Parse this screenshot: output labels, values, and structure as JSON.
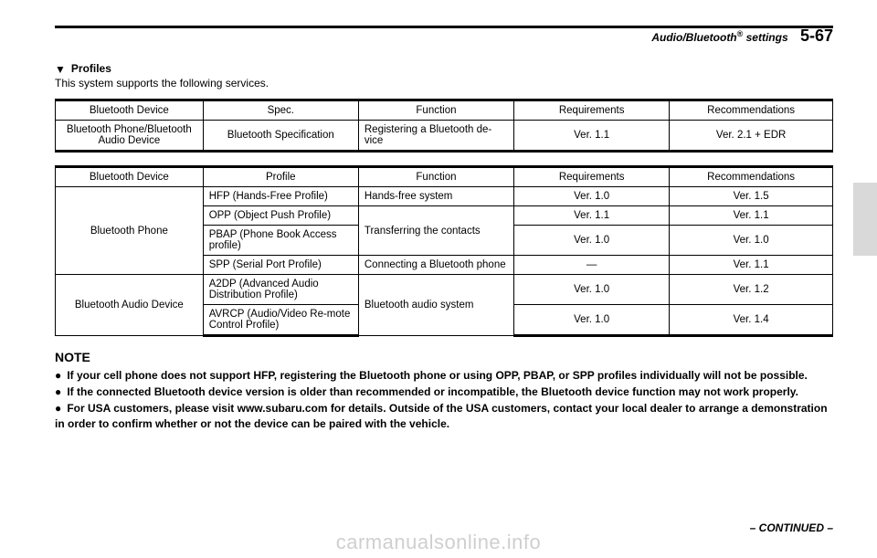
{
  "header": {
    "section": "Audio/Bluetooth",
    "reg": "®",
    "suffix": " settings",
    "page": "5-67"
  },
  "profiles": {
    "heading": "Profiles",
    "intro": "This system supports the following services."
  },
  "table1": {
    "headers": [
      "Bluetooth Device",
      "Spec.",
      "Function",
      "Requirements",
      "Recommendations"
    ],
    "row": {
      "device": "Bluetooth Phone/Bluetooth Audio Device",
      "spec": "Bluetooth Specification",
      "func": "Registering a Bluetooth de-vice",
      "req": "Ver. 1.1",
      "rec": "Ver. 2.1 + EDR"
    }
  },
  "table2": {
    "headers": [
      "Bluetooth Device",
      "Profile",
      "Function",
      "Requirements",
      "Recommendations"
    ],
    "phone": {
      "device": "Bluetooth Phone",
      "rows": [
        {
          "profile": "HFP (Hands-Free Profile)",
          "func": "Hands-free system",
          "req": "Ver. 1.0",
          "rec": "Ver. 1.5"
        },
        {
          "profile": "OPP (Object Push Profile)",
          "func": "Transferring the contacts",
          "req": "Ver. 1.1",
          "rec": "Ver. 1.1"
        },
        {
          "profile": "PBAP (Phone Book Access profile)",
          "func": "",
          "req": "Ver. 1.0",
          "rec": "Ver. 1.0"
        },
        {
          "profile": "SPP (Serial Port Profile)",
          "func": "Connecting a Bluetooth phone",
          "req": "—",
          "rec": "Ver. 1.1"
        }
      ]
    },
    "audio": {
      "device": "Bluetooth Audio Device",
      "rows": [
        {
          "profile": "A2DP (Advanced Audio Distribution Profile)",
          "func": "Bluetooth audio system",
          "req": "Ver. 1.0",
          "rec": "Ver. 1.2"
        },
        {
          "profile": "AVRCP (Audio/Video Re-mote Control Profile)",
          "func": "",
          "req": "Ver. 1.0",
          "rec": "Ver. 1.4"
        }
      ]
    }
  },
  "note": {
    "head": "NOTE",
    "items": [
      "If your cell phone does not support HFP, registering the Bluetooth phone or using OPP, PBAP, or SPP profiles individually will not be possible.",
      "If the connected Bluetooth device version is older than recommended or incompatible, the Bluetooth device function may not work properly.",
      "For USA customers, please visit www.subaru.com for details. Outside of the USA customers, contact your local dealer to arrange a demonstration in order to confirm whether or not the device can be paired with the vehicle."
    ]
  },
  "continued": "– CONTINUED –",
  "watermark": "carmanualsonline.info"
}
